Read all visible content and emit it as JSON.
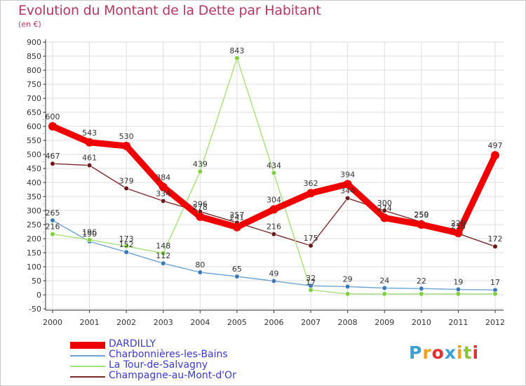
{
  "chart_data": {
    "type": "line",
    "title": "Evolution du Montant de la Dette par Habitant",
    "unit_label": "(en €)",
    "xlabel": "",
    "ylabel": "",
    "categories": [
      "2000",
      "2001",
      "2002",
      "2003",
      "2004",
      "2005",
      "2006",
      "2007",
      "2008",
      "2009",
      "2010",
      "2011",
      "2012"
    ],
    "ylim": [
      -50,
      900
    ],
    "yticks": [
      -50,
      0,
      50,
      100,
      150,
      200,
      250,
      300,
      350,
      400,
      450,
      500,
      550,
      600,
      650,
      700,
      750,
      800,
      850,
      900
    ],
    "grid": true,
    "series": [
      {
        "name": "DARDILLY",
        "color": "#ee0000",
        "marker": "#ee0000",
        "values": [
          600,
          543,
          530,
          384,
          278,
          241,
          304,
          362,
          394,
          274,
          250,
          220,
          497
        ]
      },
      {
        "name": "Charbonnières-les-Bains",
        "color": "#6fa3d2",
        "marker": "#3a78b8",
        "values": [
          265,
          190,
          152,
          112,
          80,
          65,
          49,
          32,
          29,
          24,
          22,
          19,
          17
        ]
      },
      {
        "name": "La  Tour-de-Salvagny",
        "color": "#a6e07a",
        "marker": "#7fcf3e",
        "values": [
          216,
          196,
          173,
          148,
          439,
          843,
          434,
          17,
          3,
          3,
          3,
          3,
          3
        ]
      },
      {
        "name": "Champagne-au-Mont-d'Or",
        "color": "#7a2a2a",
        "marker": "#6a1818",
        "values": [
          467,
          461,
          379,
          334,
          296,
          257,
          216,
          175,
          344,
          300,
          259,
          218,
          172
        ]
      }
    ]
  },
  "labels": {
    "DARDILLY": [
      "600",
      "543",
      "530",
      "384",
      "278",
      "241",
      "304",
      "362",
      "394",
      "274",
      "250",
      "220",
      "497"
    ],
    "Charbonnières-les-Bains": [
      "265",
      "190",
      "152",
      "112",
      "80",
      "65",
      "49",
      "32",
      "29",
      "24",
      "22",
      "19",
      "17"
    ],
    "La  Tour-de-Salvagny": [
      "216",
      "196",
      "173",
      "148",
      "439",
      "843",
      "434",
      "17",
      "",
      "",
      "",
      "",
      ""
    ],
    "Champagne-au-Mont-d'Or": [
      "467",
      "461",
      "379",
      "334",
      "296",
      "257",
      "216",
      "175",
      "344",
      "300",
      "259",
      "218",
      "172"
    ]
  },
  "legend": [
    "DARDILLY",
    "Charbonnières-les-Bains",
    "La  Tour-de-Salvagny",
    "Champagne-au-Mont-d'Or"
  ],
  "logo": {
    "letters": [
      "P",
      "r",
      "o",
      "x",
      "i",
      "t",
      "i"
    ],
    "colors": [
      "#3aa0d8",
      "#f0a020",
      "#e03030",
      "#3aa0d8",
      "#f0a020",
      "#8cc43c",
      "#e03030"
    ]
  }
}
